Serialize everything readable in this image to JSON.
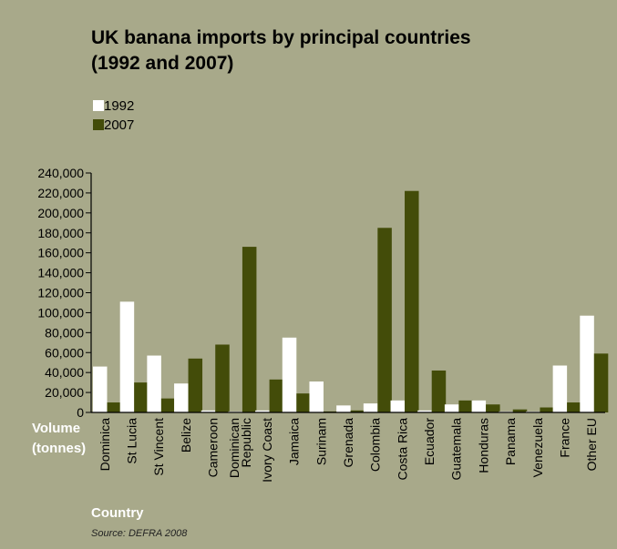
{
  "chart_data": {
    "type": "bar",
    "title": "UK banana imports by principal countries",
    "title_line2": "(1992 and 2007)",
    "ylabel_line1": "Volume",
    "ylabel_line2": "(tonnes)",
    "xlabel": "Country",
    "source": "Source: DEFRA 2008",
    "legend_placement": "top-left",
    "ylim": [
      0,
      240000
    ],
    "yticks": [
      {
        "value": 0,
        "label": "0"
      },
      {
        "value": 20000,
        "label": "20,000"
      },
      {
        "value": 40000,
        "label": "40,000"
      },
      {
        "value": 60000,
        "label": "60,000"
      },
      {
        "value": 80000,
        "label": "80,000"
      },
      {
        "value": 100000,
        "label": "100,000"
      },
      {
        "value": 120000,
        "label": "120,000"
      },
      {
        "value": 140000,
        "label": "140,000"
      },
      {
        "value": 160000,
        "label": "160,000"
      },
      {
        "value": 180000,
        "label": "180,000"
      },
      {
        "value": 200000,
        "label": "200,000"
      },
      {
        "value": 220000,
        "label": "220,000"
      },
      {
        "value": 240000,
        "label": "240,000"
      }
    ],
    "categories": [
      [
        "Dominica"
      ],
      [
        "St Lucia"
      ],
      [
        "St Vincent"
      ],
      [
        "Belize"
      ],
      [
        "Cameroon"
      ],
      [
        "Dominican",
        "Republic"
      ],
      [
        "Ivory Coast"
      ],
      [
        "Jamaica"
      ],
      [
        "Surinam"
      ],
      [
        "Grenada"
      ],
      [
        "Colombia"
      ],
      [
        "Costa Rica"
      ],
      [
        "Ecuador"
      ],
      [
        "Guatemala"
      ],
      [
        "Honduras"
      ],
      [
        "Panama"
      ],
      [
        "Venezuela"
      ],
      [
        "France"
      ],
      [
        "Other EU"
      ]
    ],
    "series": [
      {
        "name": "1992",
        "color": "#ffffff",
        "values": [
          46000,
          111000,
          57000,
          29000,
          2000,
          1000,
          2000,
          75000,
          31000,
          7000,
          9000,
          12000,
          2000,
          8000,
          12000,
          1000,
          1000,
          47000,
          97000
        ]
      },
      {
        "name": "2007",
        "color": "#434c09",
        "values": [
          10000,
          30000,
          14000,
          54000,
          68000,
          166000,
          33000,
          19000,
          1000,
          2000,
          185000,
          222000,
          42000,
          12000,
          8000,
          3000,
          5000,
          10000,
          59000
        ]
      }
    ]
  }
}
